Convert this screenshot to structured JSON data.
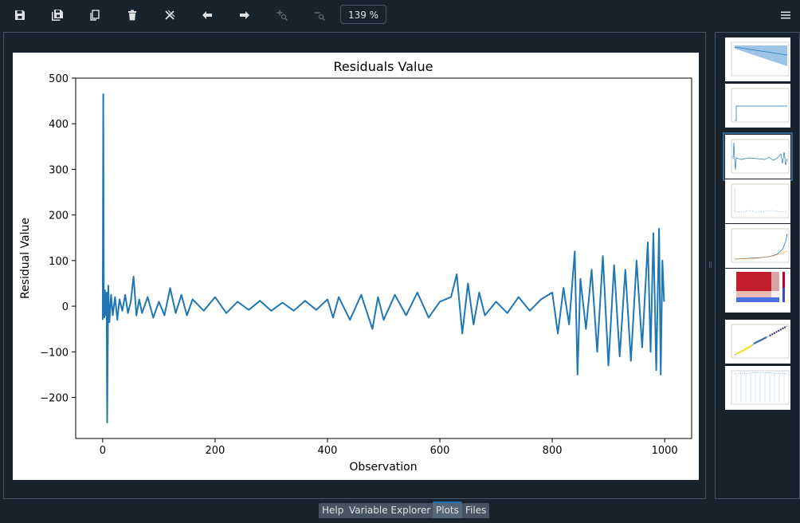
{
  "toolbar": {
    "buttons": [
      {
        "name": "save-plot-button",
        "icon": "floppy-disk-icon"
      },
      {
        "name": "save-all-plots-button",
        "icon": "multi-floppy-icon"
      },
      {
        "name": "copy-plot-button",
        "icon": "copy-icon"
      },
      {
        "name": "remove-plot-button",
        "icon": "trash-icon"
      },
      {
        "name": "remove-all-plots-button",
        "icon": "close-all-icon"
      },
      {
        "name": "previous-plot-button",
        "icon": "arrow-left-icon"
      },
      {
        "name": "next-plot-button",
        "icon": "arrow-right-icon"
      },
      {
        "name": "zoom-in-button",
        "icon": "zoom-in-icon"
      },
      {
        "name": "zoom-out-button",
        "icon": "zoom-out-icon"
      }
    ],
    "zoom": "139 %",
    "menu_icon": "hamburger-menu-icon"
  },
  "chart_data": {
    "type": "line",
    "title": "Residuals Value",
    "xlabel": "Observation",
    "ylabel": "Residual Value",
    "xlim": [
      -48,
      1048
    ],
    "ylim": [
      -290,
      500
    ],
    "xticks": [
      0,
      200,
      400,
      600,
      800,
      1000
    ],
    "yticks": [
      500,
      400,
      300,
      200,
      100,
      0,
      -100,
      -200
    ],
    "xtick_labels": [
      "0",
      "200",
      "400",
      "600",
      "800",
      "1000"
    ],
    "ytick_labels": [
      "500",
      "400",
      "300",
      "200",
      "100",
      "0",
      "−100",
      "−200"
    ],
    "grid": false,
    "color": "#1f77b4",
    "series": [
      {
        "x": [
          0,
          1,
          2,
          3,
          4,
          5,
          6,
          7,
          8,
          10,
          12,
          15,
          18,
          22,
          26,
          30,
          35,
          40,
          45,
          50,
          55,
          60,
          65,
          70,
          80,
          90,
          100,
          110,
          120,
          130,
          140,
          150,
          160,
          180,
          200,
          220,
          240,
          260,
          280,
          300,
          320,
          340,
          360,
          380,
          400,
          410,
          420,
          440,
          460,
          480,
          490,
          500,
          520,
          540,
          560,
          580,
          600,
          620,
          630,
          640,
          650,
          660,
          670,
          680,
          700,
          720,
          740,
          760,
          780,
          800,
          810,
          820,
          830,
          840,
          845,
          850,
          860,
          870,
          880,
          890,
          900,
          910,
          920,
          930,
          940,
          950,
          960,
          970,
          975,
          980,
          985,
          990,
          993,
          996,
          999
        ],
        "values": [
          -30,
          465,
          20,
          -25,
          35,
          -20,
          10,
          30,
          -255,
          45,
          -35,
          25,
          -20,
          20,
          -30,
          15,
          -10,
          25,
          -15,
          10,
          65,
          -20,
          15,
          -15,
          20,
          -25,
          10,
          -20,
          40,
          -15,
          25,
          -20,
          15,
          -10,
          20,
          -15,
          10,
          -8,
          12,
          -10,
          8,
          -10,
          12,
          -8,
          15,
          -25,
          20,
          -30,
          25,
          -50,
          20,
          -30,
          25,
          -20,
          30,
          -25,
          10,
          20,
          70,
          -60,
          50,
          -40,
          30,
          -20,
          10,
          -15,
          20,
          -10,
          15,
          30,
          -60,
          40,
          -40,
          120,
          -150,
          60,
          -50,
          80,
          -100,
          110,
          -130,
          90,
          -110,
          80,
          -120,
          100,
          -90,
          140,
          -100,
          160,
          -140,
          170,
          -150,
          100,
          10
        ]
      }
    ]
  },
  "thumbnails": [
    {
      "name": "thumb-forecast-plot",
      "selected": false
    },
    {
      "name": "thumb-step-plot",
      "selected": false
    },
    {
      "name": "thumb-residuals-plot",
      "selected": true
    },
    {
      "name": "thumb-scatter-plot",
      "selected": false
    },
    {
      "name": "thumb-growth-line-plot",
      "selected": false
    },
    {
      "name": "thumb-correlation-heatmap",
      "selected": false
    },
    {
      "name": "thumb-regression-scatter",
      "selected": false
    },
    {
      "name": "thumb-stem-plot",
      "selected": false
    }
  ],
  "tabs": [
    {
      "label": "Help",
      "active": false
    },
    {
      "label": "Variable Explorer",
      "active": false
    },
    {
      "label": "Plots",
      "active": true
    },
    {
      "label": "Files",
      "active": false
    }
  ]
}
